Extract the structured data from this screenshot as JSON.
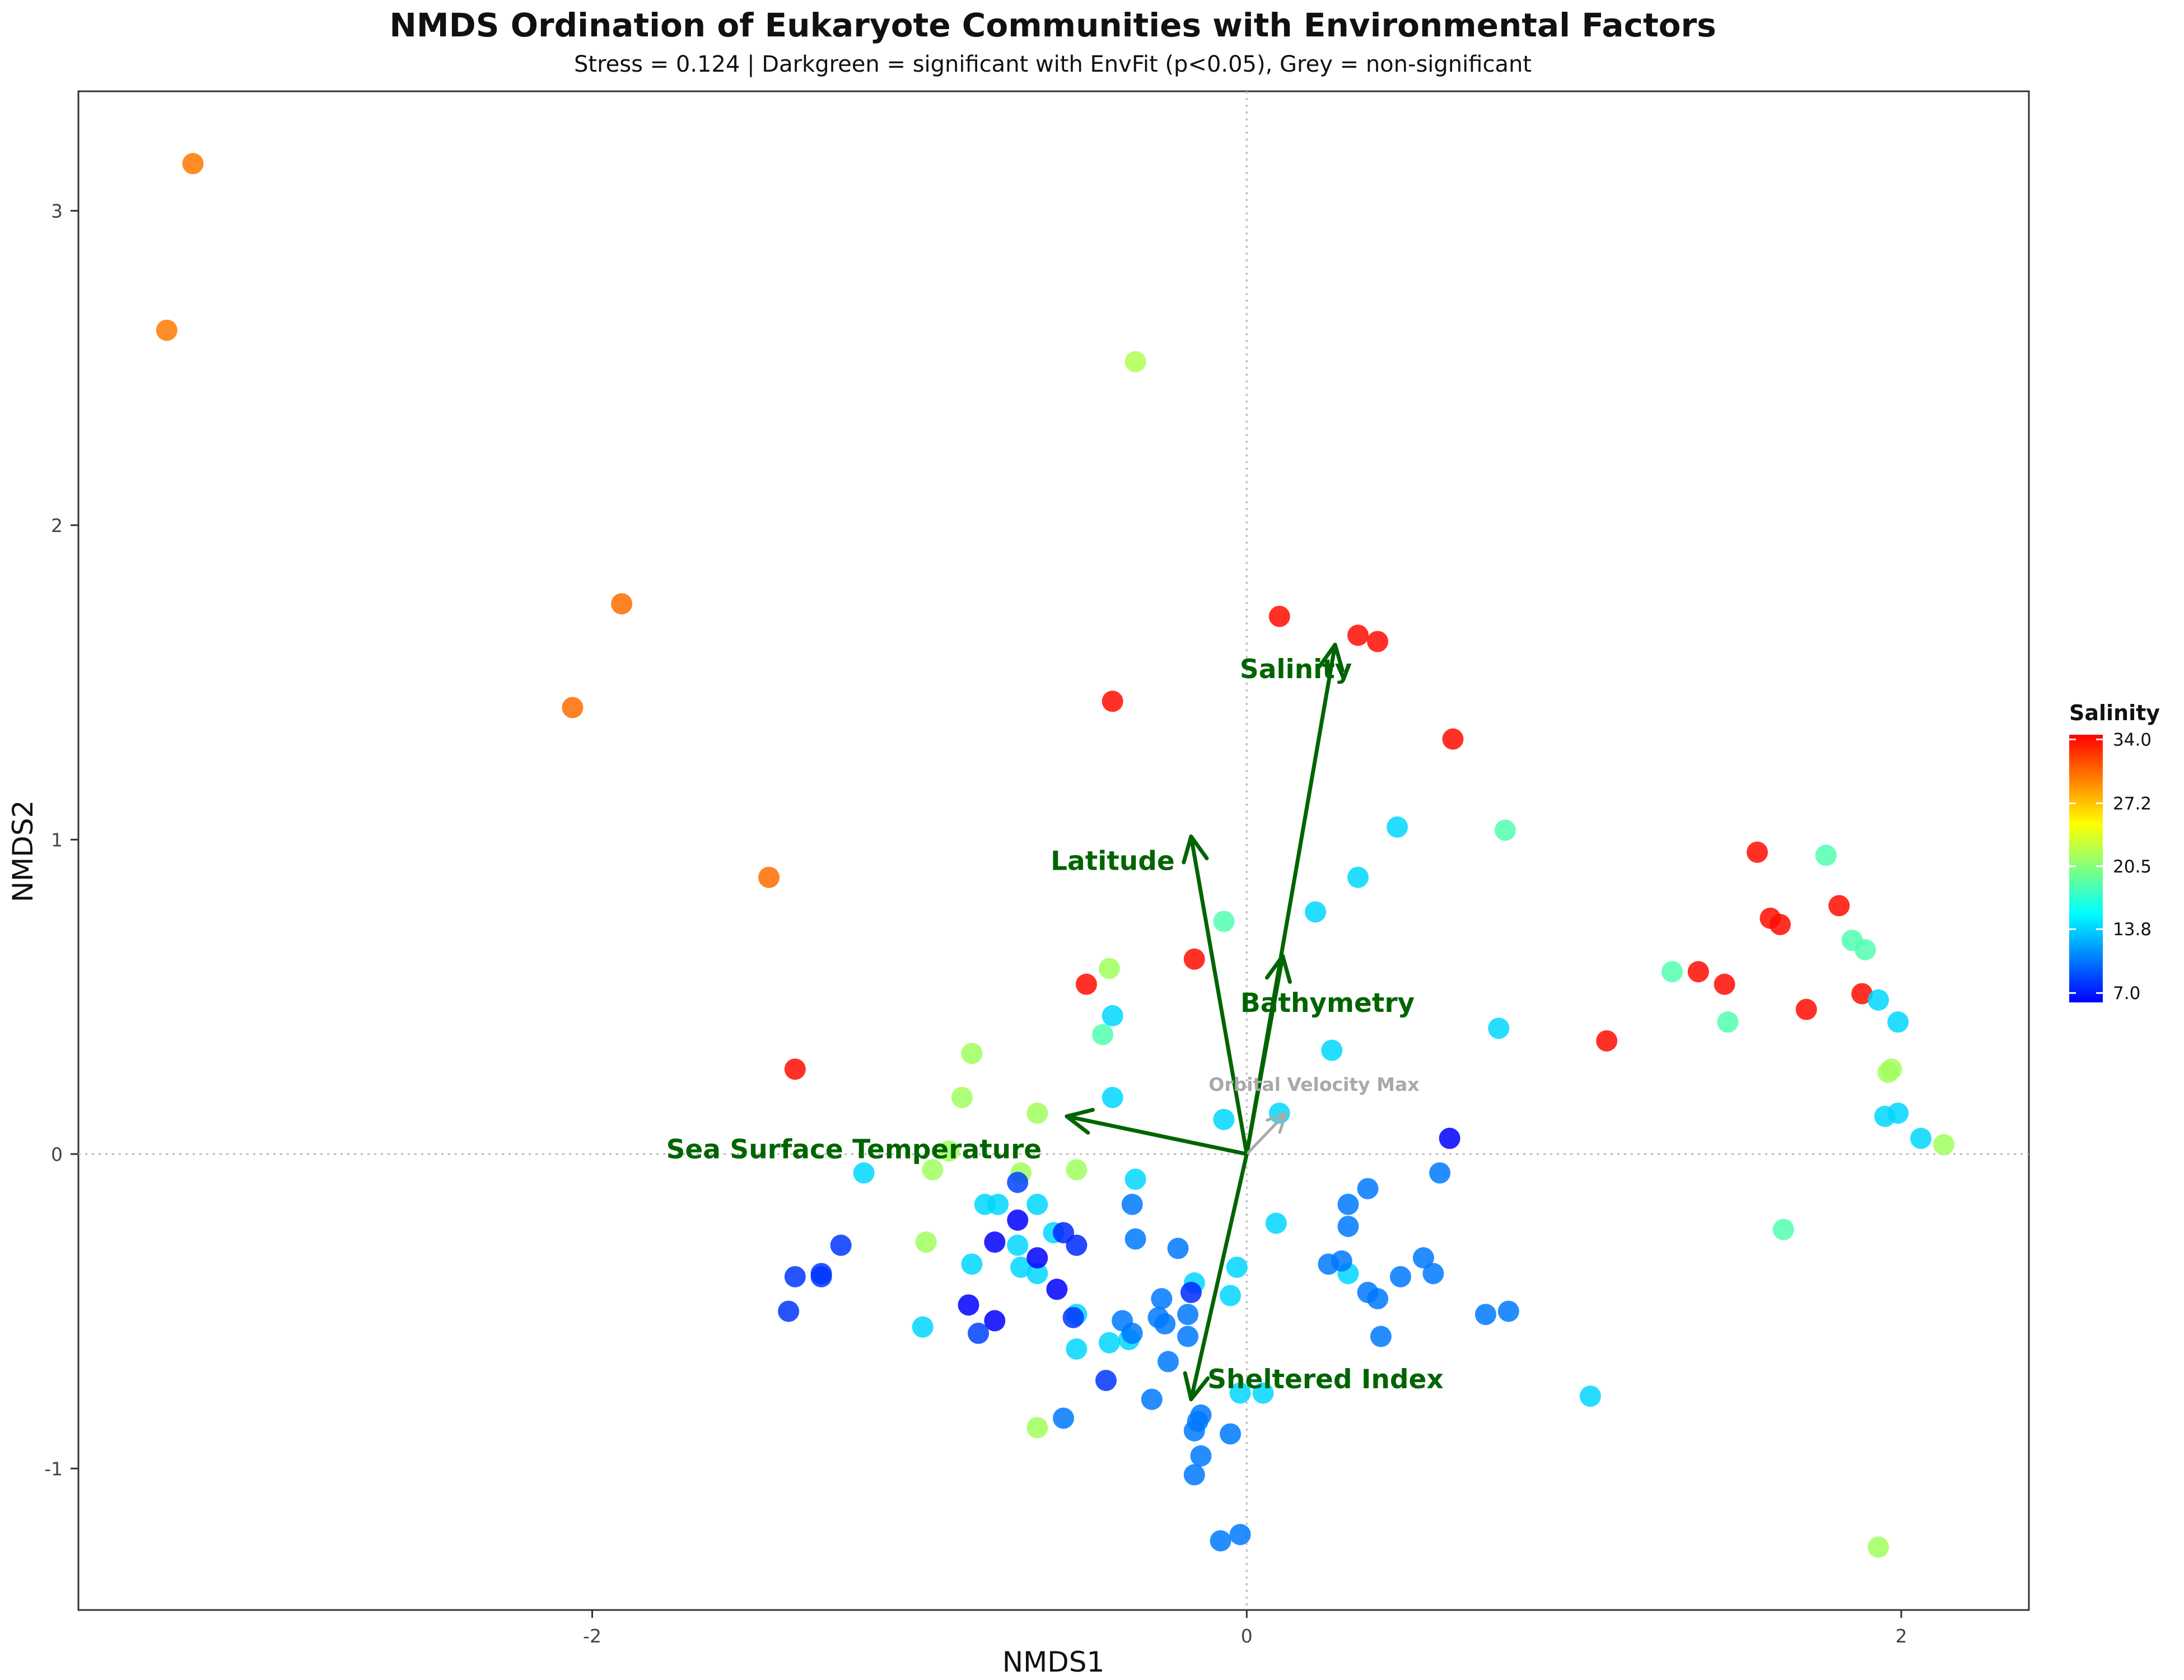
{
  "chart_data": {
    "type": "scatter",
    "title": "NMDS Ordination of Eukaryote Communities with Environmental Factors",
    "subtitle": "Stress = 0.124 | Darkgreen = significant with EnvFit (p<0.05), Grey = non-significant",
    "xlabel": "NMDS1",
    "ylabel": "NMDS2",
    "xlim": [
      -3.57,
      2.39
    ],
    "ylim": [
      -1.45,
      3.38
    ],
    "xticks": [
      -2,
      0,
      2
    ],
    "yticks": [
      -1,
      0,
      1,
      2,
      3
    ],
    "reference_lines": {
      "x": 0,
      "y": 0,
      "style": "dotted"
    },
    "colorbar": {
      "title": "Salinity",
      "min": 6.0,
      "max": 34.5,
      "ticks": [
        34.0,
        27.2,
        20.5,
        13.8,
        7.0
      ],
      "colors": [
        "#0000ff",
        "#0080ff",
        "#00ffff",
        "#80ff80",
        "#ffff00",
        "#ff8000",
        "#ff0000"
      ]
    },
    "significant_color": "#006400",
    "nonsignificant_color": "#a9a9a9",
    "vectors": [
      {
        "name": "Salinity",
        "x": 0.27,
        "y": 1.62,
        "significant": true
      },
      {
        "name": "Latitude",
        "x": -0.17,
        "y": 1.01,
        "significant": true
      },
      {
        "name": "Bathymetry",
        "x": 0.11,
        "y": 0.63,
        "significant": true
      },
      {
        "name": "Orbital Velocity Max",
        "x": 0.12,
        "y": 0.13,
        "significant": false
      },
      {
        "name": "Sea Surface Temperature",
        "x": -0.55,
        "y": 0.12,
        "significant": true
      },
      {
        "name": "Sheltered Index",
        "x": -0.17,
        "y": -0.78,
        "significant": true
      }
    ],
    "points": [
      [
        -3.22,
        3.15,
        30.0
      ],
      [
        -3.3,
        2.62,
        30.0
      ],
      [
        -0.34,
        2.52,
        22.0
      ],
      [
        -1.91,
        1.75,
        30.5
      ],
      [
        -2.06,
        1.42,
        30.5
      ],
      [
        -1.46,
        0.88,
        30.5
      ],
      [
        0.1,
        1.71,
        34.0
      ],
      [
        0.34,
        1.65,
        34.0
      ],
      [
        0.4,
        1.63,
        34.0
      ],
      [
        -0.41,
        1.44,
        34.0
      ],
      [
        0.63,
        1.32,
        34.0
      ],
      [
        -1.38,
        0.27,
        34.0
      ],
      [
        -0.16,
        0.62,
        34.0
      ],
      [
        -0.49,
        0.54,
        34.0
      ],
      [
        1.1,
        0.36,
        34.0
      ],
      [
        1.56,
        0.96,
        34.0
      ],
      [
        1.6,
        0.75,
        34.0
      ],
      [
        1.63,
        0.73,
        34.0
      ],
      [
        1.81,
        0.79,
        34.0
      ],
      [
        1.38,
        0.58,
        34.0
      ],
      [
        1.46,
        0.54,
        34.0
      ],
      [
        1.71,
        0.46,
        34.0
      ],
      [
        1.88,
        0.51,
        34.0
      ],
      [
        1.77,
        0.95,
        18.5
      ],
      [
        1.85,
        0.68,
        18.5
      ],
      [
        1.89,
        0.65,
        18.5
      ],
      [
        1.3,
        0.58,
        18.5
      ],
      [
        1.47,
        0.42,
        18.5
      ],
      [
        0.79,
        1.03,
        18.5
      ],
      [
        -0.07,
        0.74,
        18.5
      ],
      [
        -0.44,
        0.38,
        18.5
      ],
      [
        1.64,
        -0.24,
        18.5
      ],
      [
        1.93,
        -1.25,
        21.5
      ],
      [
        1.97,
        0.27,
        21.5
      ],
      [
        1.96,
        0.26,
        21.5
      ],
      [
        2.13,
        0.03,
        21.5
      ],
      [
        -0.42,
        0.59,
        21.5
      ],
      [
        -0.84,
        0.32,
        21.5
      ],
      [
        -0.87,
        0.18,
        21.5
      ],
      [
        -0.64,
        0.13,
        21.5
      ],
      [
        -0.96,
        -0.05,
        21.5
      ],
      [
        -0.91,
        0.01,
        21.5
      ],
      [
        -0.69,
        -0.06,
        21.5
      ],
      [
        -0.52,
        -0.05,
        21.5
      ],
      [
        -0.98,
        -0.28,
        21.5
      ],
      [
        -0.64,
        -0.87,
        21.5
      ],
      [
        0.46,
        1.04,
        14.0
      ],
      [
        0.34,
        0.88,
        14.0
      ],
      [
        0.21,
        0.77,
        14.0
      ],
      [
        0.77,
        0.4,
        14.0
      ],
      [
        0.26,
        0.33,
        14.0
      ],
      [
        -0.41,
        0.44,
        14.0
      ],
      [
        -0.41,
        0.18,
        14.0
      ],
      [
        -0.07,
        0.11,
        14.0
      ],
      [
        0.1,
        0.13,
        14.0
      ],
      [
        1.93,
        0.49,
        14.0
      ],
      [
        1.99,
        0.42,
        14.0
      ],
      [
        1.95,
        0.12,
        14.0
      ],
      [
        1.99,
        0.13,
        14.0
      ],
      [
        2.06,
        0.05,
        14.0
      ],
      [
        1.05,
        -0.77,
        14.0
      ],
      [
        -1.17,
        -0.06,
        14.0
      ],
      [
        -0.34,
        -0.08,
        14.0
      ],
      [
        -0.8,
        -0.16,
        14.0
      ],
      [
        -0.76,
        -0.16,
        14.0
      ],
      [
        -0.64,
        -0.16,
        14.0
      ],
      [
        -0.59,
        -0.25,
        14.0
      ],
      [
        -0.7,
        -0.29,
        14.0
      ],
      [
        -0.84,
        -0.35,
        14.0
      ],
      [
        -0.69,
        -0.36,
        14.0
      ],
      [
        -0.64,
        -0.38,
        14.0
      ],
      [
        -0.52,
        -0.51,
        14.0
      ],
      [
        -0.99,
        -0.55,
        14.0
      ],
      [
        -0.42,
        -0.6,
        14.0
      ],
      [
        -0.52,
        -0.62,
        14.0
      ],
      [
        0.09,
        -0.22,
        14.0
      ],
      [
        -0.03,
        -0.36,
        14.0
      ],
      [
        -0.16,
        -0.41,
        14.0
      ],
      [
        -0.05,
        -0.45,
        14.0
      ],
      [
        0.31,
        -0.38,
        14.0
      ],
      [
        -0.02,
        -0.76,
        14.0
      ],
      [
        0.05,
        -0.76,
        14.0
      ],
      [
        -0.36,
        -0.59,
        14.0
      ],
      [
        0.62,
        0.05,
        6.0
      ],
      [
        -0.7,
        -0.09,
        8.5
      ],
      [
        -0.7,
        -0.21,
        6.0
      ],
      [
        -0.77,
        -0.28,
        6.0
      ],
      [
        -0.64,
        -0.33,
        6.0
      ],
      [
        -0.58,
        -0.43,
        6.0
      ],
      [
        -0.56,
        -0.25,
        7.5
      ],
      [
        -0.52,
        -0.29,
        7.5
      ],
      [
        -0.53,
        -0.52,
        8.0
      ],
      [
        -1.24,
        -0.29,
        8.0
      ],
      [
        -1.3,
        -0.38,
        8.0
      ],
      [
        -1.3,
        -0.39,
        8.0
      ],
      [
        -1.38,
        -0.39,
        8.0
      ],
      [
        -1.4,
        -0.5,
        8.0
      ],
      [
        -0.85,
        -0.48,
        6.0
      ],
      [
        -0.77,
        -0.53,
        6.0
      ],
      [
        -0.82,
        -0.57,
        8.5
      ],
      [
        -0.43,
        -0.72,
        8.0
      ],
      [
        -0.17,
        -0.44,
        7.5
      ],
      [
        -0.35,
        -0.16,
        10.5
      ],
      [
        -0.34,
        -0.27,
        10.5
      ],
      [
        -0.21,
        -0.3,
        10.5
      ],
      [
        -0.26,
        -0.46,
        10.5
      ],
      [
        -0.18,
        -0.51,
        10.5
      ],
      [
        -0.27,
        -0.52,
        10.5
      ],
      [
        -0.25,
        -0.54,
        10.5
      ],
      [
        -0.38,
        -0.53,
        10.5
      ],
      [
        -0.35,
        -0.57,
        10.5
      ],
      [
        -0.18,
        -0.58,
        10.5
      ],
      [
        -0.24,
        -0.66,
        10.5
      ],
      [
        -0.29,
        -0.78,
        10.5
      ],
      [
        -0.14,
        -0.83,
        10.5
      ],
      [
        -0.15,
        -0.85,
        10.5
      ],
      [
        -0.16,
        -0.88,
        10.5
      ],
      [
        -0.05,
        -0.89,
        10.5
      ],
      [
        -0.14,
        -0.96,
        10.5
      ],
      [
        -0.16,
        -1.02,
        10.5
      ],
      [
        -0.08,
        -1.23,
        10.5
      ],
      [
        -0.02,
        -1.21,
        10.5
      ],
      [
        -0.56,
        -0.84,
        10.5
      ],
      [
        0.37,
        -0.11,
        10.5
      ],
      [
        0.31,
        -0.16,
        10.5
      ],
      [
        0.31,
        -0.23,
        10.5
      ],
      [
        0.25,
        -0.35,
        10.5
      ],
      [
        0.29,
        -0.34,
        10.5
      ],
      [
        0.37,
        -0.44,
        10.5
      ],
      [
        0.4,
        -0.46,
        10.5
      ],
      [
        0.47,
        -0.39,
        10.5
      ],
      [
        0.54,
        -0.33,
        10.5
      ],
      [
        0.57,
        -0.38,
        10.5
      ],
      [
        0.59,
        -0.06,
        10.5
      ],
      [
        0.73,
        -0.51,
        10.5
      ],
      [
        0.8,
        -0.5,
        10.5
      ],
      [
        0.41,
        -0.58,
        10.5
      ]
    ]
  }
}
